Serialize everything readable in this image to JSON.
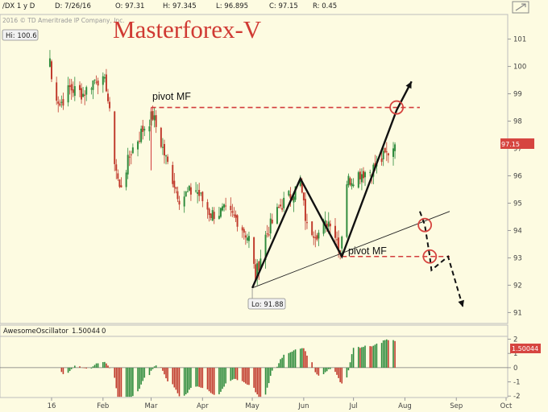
{
  "header": {
    "symbol": "/DX 1 y D",
    "open": "D: 7/26/16",
    "o": "O: 97.31",
    "h": "H: 97.345",
    "l": "L: 96.895",
    "c": "C: 97.15",
    "r": "R: 0.45",
    "copyright": "2016 © TD Ameritrade IP Company, Inc."
  },
  "title": "Masterforex-V",
  "annotations": {
    "pivot_top": "pivot MF",
    "pivot_bottom": "pivot MF",
    "hi": "Hi: 100.6",
    "lo": "Lo: 91.88",
    "last_price": "97.15"
  },
  "oscillator": {
    "name": "AwesomeOscillator",
    "value": "1.50044",
    "param": "0",
    "tag": "1.50044"
  },
  "colors": {
    "up": "#2e8b3c",
    "down": "#c0392b",
    "pivot_line": "#d23c3c",
    "price_tag": "#d64540",
    "background": "#fdfbe1"
  },
  "chart_data": {
    "type": "candlestick",
    "price_axis": {
      "ticks": [
        "101",
        "100",
        "99",
        "98",
        "97",
        "96",
        "95",
        "94",
        "93",
        "92",
        "91"
      ],
      "ylim": [
        90.6,
        101.9
      ]
    },
    "time_axis": {
      "ticks": [
        "16",
        "Feb",
        "Mar",
        "Apr",
        "May",
        "Jun",
        "Jul",
        "Aug",
        "Sep",
        "Oct"
      ]
    },
    "osc_axis": {
      "ticks": [
        "2",
        "1",
        "0",
        "-1",
        "-2"
      ],
      "ylim": [
        -2.1,
        2.2
      ]
    },
    "anchor_points": [
      {
        "date": "2015-12-31",
        "value": 100.3
      },
      {
        "date": "2016-01-01",
        "value": 99.5
      },
      {
        "date": "2016-01-06",
        "value": 98.6
      },
      {
        "date": "2016-01-12",
        "value": 99.2
      },
      {
        "date": "2016-01-20",
        "value": 99.0
      },
      {
        "date": "2016-01-28",
        "value": 99.6
      },
      {
        "date": "2016-02-03",
        "value": 99.3
      },
      {
        "date": "2016-02-08",
        "value": 96.6
      },
      {
        "date": "2016-02-11",
        "value": 95.5
      },
      {
        "date": "2016-02-18",
        "value": 96.9
      },
      {
        "date": "2016-02-26",
        "value": 97.8
      },
      {
        "date": "2016-03-02",
        "value": 98.2
      },
      {
        "date": "2016-03-10",
        "value": 96.6
      },
      {
        "date": "2016-03-18",
        "value": 95.2
      },
      {
        "date": "2016-03-28",
        "value": 95.5
      },
      {
        "date": "2016-04-06",
        "value": 94.6
      },
      {
        "date": "2016-04-14",
        "value": 94.7
      },
      {
        "date": "2016-04-22",
        "value": 94.4
      },
      {
        "date": "2016-04-29",
        "value": 93.7
      },
      {
        "date": "2016-05-03",
        "value": 92.3
      },
      {
        "date": "2016-05-09",
        "value": 93.8
      },
      {
        "date": "2016-05-18",
        "value": 94.9
      },
      {
        "date": "2016-05-30",
        "value": 95.7
      },
      {
        "date": "2016-06-03",
        "value": 94.1
      },
      {
        "date": "2016-06-10",
        "value": 93.9
      },
      {
        "date": "2016-06-17",
        "value": 94.4
      },
      {
        "date": "2016-06-23",
        "value": 93.3
      },
      {
        "date": "2016-06-27",
        "value": 95.8
      },
      {
        "date": "2016-07-05",
        "value": 96.1
      },
      {
        "date": "2016-07-12",
        "value": 96.2
      },
      {
        "date": "2016-07-18",
        "value": 96.6
      },
      {
        "date": "2016-07-26",
        "value": 97.15
      }
    ],
    "series": [
      {
        "name": "pivot MF top",
        "values": [
          {
            "date": "2016-03-01",
            "value": 98.5
          },
          {
            "date": "2016-08-10",
            "value": 98.5
          }
        ]
      },
      {
        "name": "pivot MF bottom",
        "values": [
          {
            "date": "2016-06-24",
            "value": 93.05
          },
          {
            "date": "2016-08-28",
            "value": 93.05
          }
        ]
      },
      {
        "name": "trend line",
        "values": [
          {
            "date": "2016-05-01",
            "value": 91.9
          },
          {
            "date": "2016-08-28",
            "value": 94.7
          }
        ]
      },
      {
        "name": "zigzag",
        "values": [
          {
            "date": "2016-05-01",
            "value": 91.9
          },
          {
            "date": "2016-05-30",
            "value": 95.9
          },
          {
            "date": "2016-06-24",
            "value": 93.05
          },
          {
            "date": "2016-07-27",
            "value": 98.4
          },
          {
            "date": "2016-08-05",
            "value": 99.45
          }
        ]
      },
      {
        "name": "forecast",
        "values": [
          {
            "date": "2016-08-10",
            "value": 94.7
          },
          {
            "date": "2016-08-13",
            "value": 94.2
          },
          {
            "date": "2016-08-16",
            "value": 93.05
          },
          {
            "date": "2016-08-17",
            "value": 92.55
          },
          {
            "date": "2016-08-27",
            "value": 93.05
          },
          {
            "date": "2016-09-05",
            "value": 91.2
          }
        ]
      }
    ],
    "markers": [
      {
        "date": "2016-07-27",
        "value": 98.5
      },
      {
        "date": "2016-08-13",
        "value": 94.2
      },
      {
        "date": "2016-08-16",
        "value": 93.05
      }
    ]
  }
}
